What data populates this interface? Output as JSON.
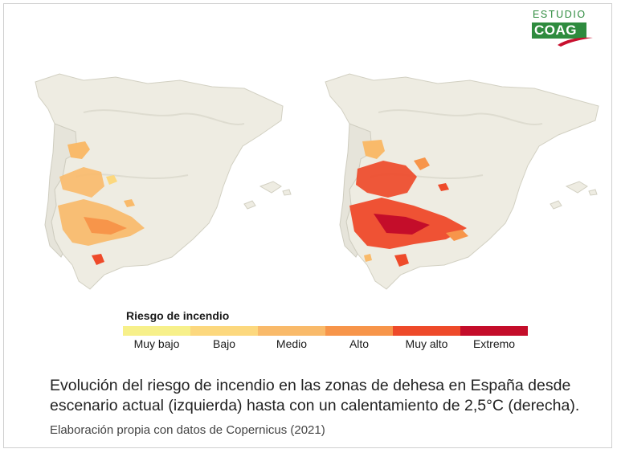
{
  "logo": {
    "top_text": "ESTUDIO",
    "box_text": "COAG",
    "green": "#2e8b3e",
    "red": "#c8102e"
  },
  "maps": [
    {
      "side": "left",
      "scenario": "escenario actual"
    },
    {
      "side": "right",
      "scenario": "calentamiento de 2,5°C"
    }
  ],
  "legend": {
    "title": "Riesgo de incendio",
    "classes": [
      {
        "label": "Muy bajo",
        "color": "#f7f08a"
      },
      {
        "label": "Bajo",
        "color": "#fcd87e"
      },
      {
        "label": "Medio",
        "color": "#f9ba6a"
      },
      {
        "label": "Alto",
        "color": "#f7954a"
      },
      {
        "label": "Muy alto",
        "color": "#ee4a2a"
      },
      {
        "label": "Extremo",
        "color": "#c40d2a"
      }
    ]
  },
  "caption": {
    "line1": "Evolución del riesgo de incendio en las zonas de dehesa en España desde",
    "line2": "escenario actual (izquierda) hasta con un calentamiento de 2,5°C (derecha)."
  },
  "source": "Elaboración propia con datos de Copernicus (2021)"
}
